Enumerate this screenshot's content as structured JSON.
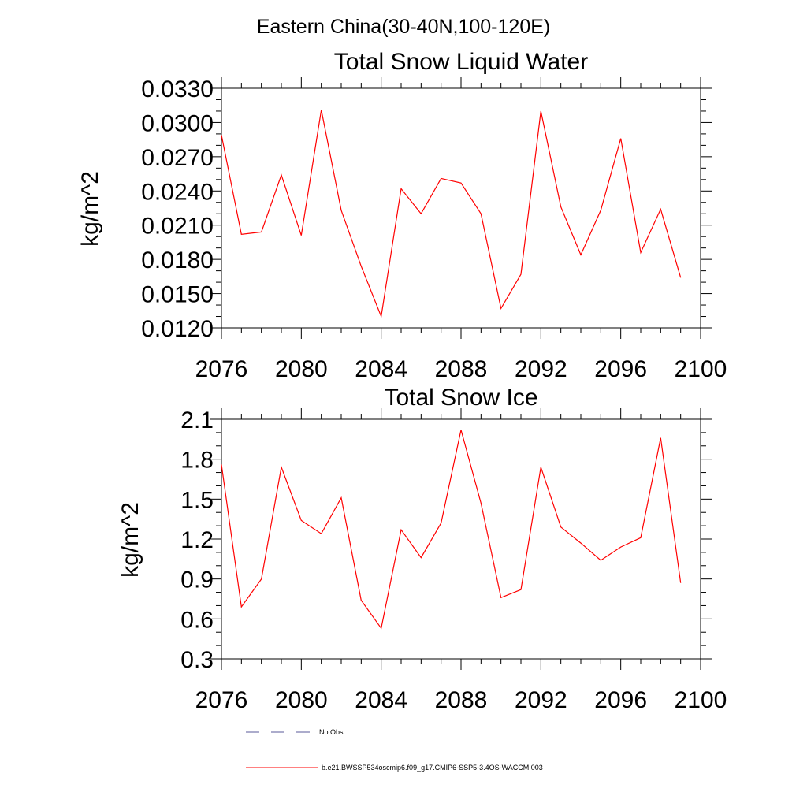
{
  "figure": {
    "suptitle": "Eastern China(30-40N,100-120E)"
  },
  "chart_data": [
    {
      "type": "line",
      "title": "Total Snow Liquid Water",
      "xlabel": "",
      "ylabel": "kg/m^2",
      "xlim": [
        2076,
        2100
      ],
      "ylim": [
        0.012,
        0.033
      ],
      "xticks": [
        "2076",
        "2080",
        "2084",
        "2088",
        "2092",
        "2096",
        "2100"
      ],
      "yticks": [
        "0.0120",
        "0.0150",
        "0.0180",
        "0.0210",
        "0.0240",
        "0.0270",
        "0.0300",
        "0.0330"
      ],
      "grid": false,
      "x": [
        2076,
        2077,
        2078,
        2079,
        2080,
        2081,
        2082,
        2083,
        2084,
        2085,
        2086,
        2087,
        2088,
        2089,
        2090,
        2091,
        2092,
        2093,
        2094,
        2095,
        2096,
        2097,
        2098,
        2099
      ],
      "series": [
        {
          "name": "b.e21.BWSSP534oscmip6.f09_g17.CMIP6-SSP5-3.4OS-WACCM.003",
          "color": "#ff0000",
          "values": [
            0.0289,
            0.0202,
            0.0204,
            0.0254,
            0.0201,
            0.0311,
            0.0223,
            0.0174,
            0.013,
            0.0242,
            0.022,
            0.0251,
            0.0247,
            0.022,
            0.0137,
            0.0167,
            0.031,
            0.0226,
            0.0184,
            0.0223,
            0.0286,
            0.0186,
            0.0224,
            0.0164
          ]
        }
      ]
    },
    {
      "type": "line",
      "title": "Total Snow Ice",
      "xlabel": "",
      "ylabel": "kg/m^2",
      "xlim": [
        2076,
        2100
      ],
      "ylim": [
        0.3,
        2.1
      ],
      "xticks": [
        "2076",
        "2080",
        "2084",
        "2088",
        "2092",
        "2096",
        "2100"
      ],
      "yticks": [
        "0.3",
        "0.6",
        "0.9",
        "1.2",
        "1.5",
        "1.8",
        "2.1"
      ],
      "grid": false,
      "x": [
        2076,
        2077,
        2078,
        2079,
        2080,
        2081,
        2082,
        2083,
        2084,
        2085,
        2086,
        2087,
        2088,
        2089,
        2090,
        2091,
        2092,
        2093,
        2094,
        2095,
        2096,
        2097,
        2098,
        2099
      ],
      "series": [
        {
          "name": "b.e21.BWSSP534oscmip6.f09_g17.CMIP6-SSP5-3.4OS-WACCM.003",
          "color": "#ff0000",
          "values": [
            1.76,
            0.69,
            0.9,
            1.74,
            1.34,
            1.24,
            1.51,
            0.74,
            0.53,
            1.27,
            1.06,
            1.32,
            2.02,
            1.47,
            0.76,
            0.82,
            1.74,
            1.29,
            1.17,
            1.04,
            1.14,
            1.21,
            1.96,
            0.87
          ]
        }
      ]
    }
  ],
  "legend": {
    "items": [
      {
        "label": "No Obs",
        "style": "dashed",
        "color": "#5a5a9a"
      },
      {
        "label": "b.e21.BWSSP534oscmip6.f09_g17.CMIP6-SSP5-3.4OS-WACCM.003",
        "style": "solid",
        "color": "#ff0000"
      }
    ]
  }
}
